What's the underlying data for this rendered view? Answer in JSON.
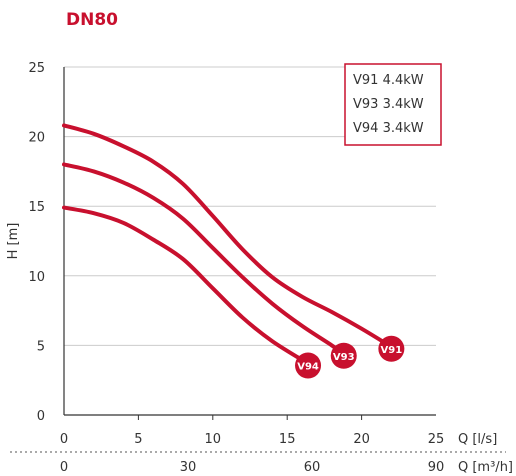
{
  "chart_data": {
    "type": "line",
    "title": "DN80",
    "xlabel": "Q [l/s]",
    "x2label": "Q [m³/h]",
    "ylabel": "H [m]",
    "xlim": [
      0,
      25
    ],
    "ylim": [
      0,
      25
    ],
    "x_ticks": [
      "0",
      "5",
      "10",
      "15",
      "20",
      "25"
    ],
    "x2_ticks": [
      "0",
      "30",
      "60",
      "90"
    ],
    "y_ticks": [
      "0",
      "5",
      "10",
      "15",
      "20",
      "25"
    ],
    "grid": "horizontal",
    "legend": {
      "placement": "top-right",
      "entries": [
        "V91 4.4kW",
        "V93 3.4kW",
        "V94 3.4kW"
      ]
    },
    "series": [
      {
        "name": "V91",
        "points": [
          [
            0,
            20.8
          ],
          [
            2,
            20.2
          ],
          [
            4,
            19.3
          ],
          [
            6,
            18.2
          ],
          [
            8,
            16.6
          ],
          [
            10,
            14.3
          ],
          [
            12,
            11.9
          ],
          [
            14,
            9.9
          ],
          [
            16,
            8.5
          ],
          [
            18,
            7.4
          ],
          [
            20,
            6.2
          ],
          [
            22,
            4.9
          ]
        ]
      },
      {
        "name": "V93",
        "points": [
          [
            0,
            18.0
          ],
          [
            2,
            17.5
          ],
          [
            4,
            16.7
          ],
          [
            6,
            15.6
          ],
          [
            8,
            14.1
          ],
          [
            10,
            12.0
          ],
          [
            12,
            9.9
          ],
          [
            14,
            8.0
          ],
          [
            16,
            6.4
          ],
          [
            18,
            5.0
          ],
          [
            18.8,
            4.4
          ]
        ]
      },
      {
        "name": "V94",
        "points": [
          [
            0,
            14.9
          ],
          [
            2,
            14.5
          ],
          [
            4,
            13.8
          ],
          [
            6,
            12.6
          ],
          [
            8,
            11.2
          ],
          [
            10,
            9.1
          ],
          [
            12,
            7.0
          ],
          [
            14,
            5.3
          ],
          [
            16.4,
            3.7
          ]
        ]
      }
    ]
  },
  "colors": {
    "accent": "#c8102e",
    "grid": "#cccccc",
    "axis": "#333333",
    "text": "#333333"
  }
}
